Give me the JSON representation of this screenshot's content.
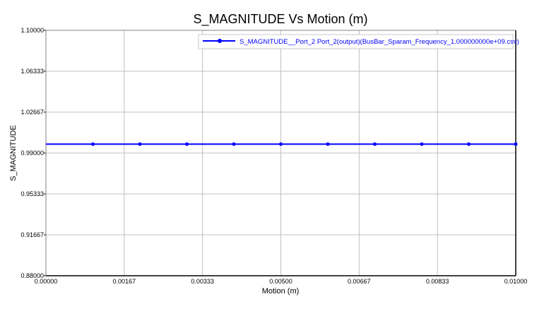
{
  "chart_data": {
    "type": "line",
    "title": "S_MAGNITUDE Vs Motion (m)",
    "xlabel": "Motion (m)",
    "ylabel": "S_MAGNITUDE",
    "xlim": [
      0,
      0.01
    ],
    "ylim": [
      0.88,
      1.1
    ],
    "xticks": [
      "0.00000",
      "0.00167",
      "0.00333",
      "0.00500",
      "0.00667",
      "0.00833",
      "0.01000"
    ],
    "yticks": [
      "0.88000",
      "0.91667",
      "0.95333",
      "0.99000",
      "1.02667",
      "1.06333",
      "1.10000"
    ],
    "grid": true,
    "legend_position": "top-right",
    "series": [
      {
        "name": "S_MAGNITUDE__Port_2 Port_2(output)(BusBar_Sparam_Frequency_1.000000000e+09.csv)",
        "color": "#0000ff",
        "x": [
          0,
          0.001,
          0.002,
          0.003,
          0.004,
          0.005,
          0.006,
          0.007,
          0.008,
          0.009,
          0.01
        ],
        "y": [
          0.998,
          0.998,
          0.998,
          0.998,
          0.998,
          0.998,
          0.998,
          0.998,
          0.998,
          0.998,
          0.998
        ]
      }
    ]
  }
}
